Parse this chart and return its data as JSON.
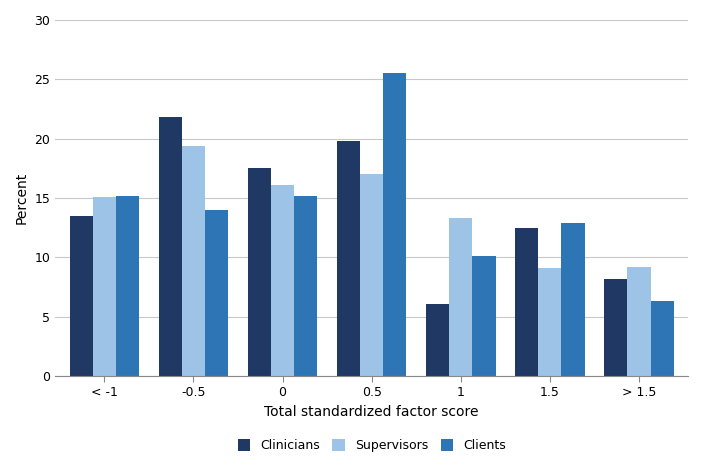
{
  "categories": [
    "< -1",
    "-0.5",
    "0",
    "0.5",
    "1",
    "1.5",
    "> 1.5"
  ],
  "series": {
    "Clinicians": [
      13.5,
      21.8,
      17.5,
      19.8,
      6.1,
      12.5,
      8.2
    ],
    "Supervisors": [
      15.1,
      19.4,
      16.1,
      17.0,
      13.3,
      9.1,
      9.2
    ],
    "Clients": [
      15.2,
      14.0,
      15.2,
      25.5,
      10.1,
      12.9,
      6.3
    ]
  },
  "colors": {
    "Clinicians": "#1f3864",
    "Supervisors": "#9dc3e6",
    "Clients": "#2e75b6"
  },
  "xlabel": "Total standardized factor score",
  "ylabel": "Percent",
  "ylim": [
    0,
    30
  ],
  "yticks": [
    0,
    5,
    10,
    15,
    20,
    25,
    30
  ],
  "legend_labels": [
    "Clinicians",
    "Supervisors",
    "Clients"
  ],
  "bar_width": 0.26,
  "grid_color": "#c8c8c8",
  "background_color": "#ffffff"
}
